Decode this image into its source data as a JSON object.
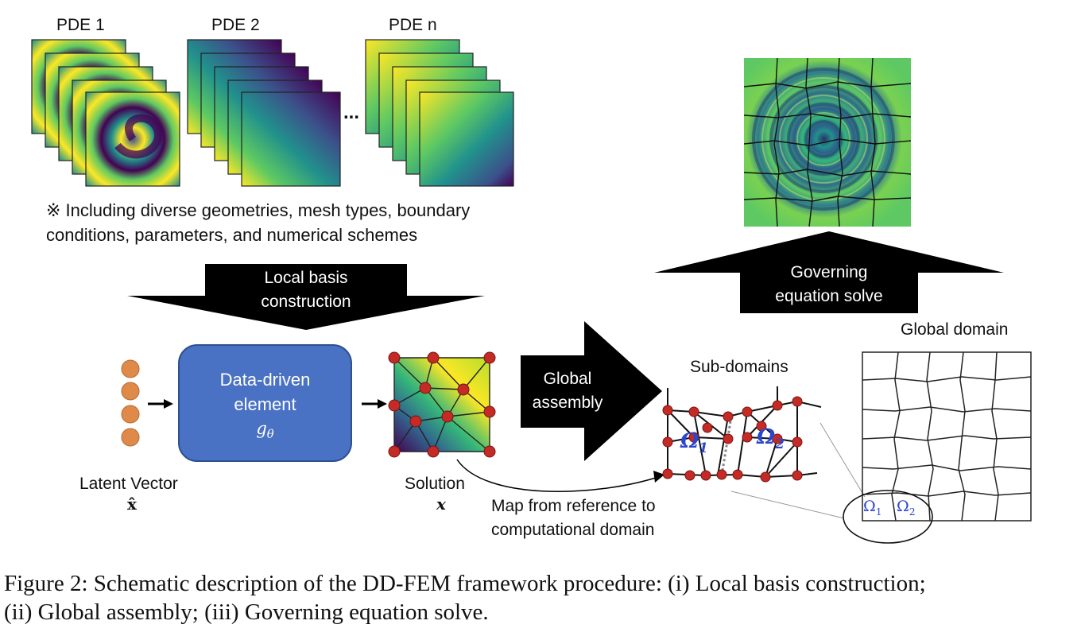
{
  "pde_stacks": [
    {
      "label": "PDE 1"
    },
    {
      "label": "PDE 2"
    },
    {
      "label": "PDE n"
    }
  ],
  "ellipsis": "...",
  "note": {
    "line1": "※ Including diverse geometries, mesh types, boundary",
    "line2": "conditions, parameters, and numerical schemes"
  },
  "arrows": {
    "local_basis": {
      "line1": "Local basis",
      "line2": "construction"
    },
    "global_assembly": {
      "line1": "Global",
      "line2": "assembly"
    },
    "governing_solve": {
      "line1": "Governing",
      "line2": "equation solve"
    }
  },
  "element": {
    "line1": "Data-driven",
    "line2": "element",
    "symbol": "gθ"
  },
  "latent": {
    "label": "Latent Vector",
    "symbol": "x̂"
  },
  "solution": {
    "label": "Solution",
    "symbol": "x"
  },
  "map_label": {
    "line1": "Map from reference to",
    "line2": "computational domain"
  },
  "subdomains": {
    "label": "Sub-domains",
    "omega1": "Ω1",
    "omega2": "Ω2"
  },
  "global_domain": {
    "label": "Global domain",
    "omega1": "Ω1",
    "omega2": "Ω2"
  },
  "caption": {
    "line1": "Figure 2: Schematic description of the DD-FEM framework procedure: (i) Local basis construction;",
    "line2": "(ii) Global assembly; (iii) Governing equation solve."
  },
  "colors": {
    "element_fill": "#4a72c4",
    "latent_node": "#e08a4a",
    "mesh_node": "#c42a26",
    "omega_text": "#2a45d0",
    "viridis_dark": "#440154",
    "viridis_mid": "#21918c",
    "viridis_light": "#fde725"
  }
}
